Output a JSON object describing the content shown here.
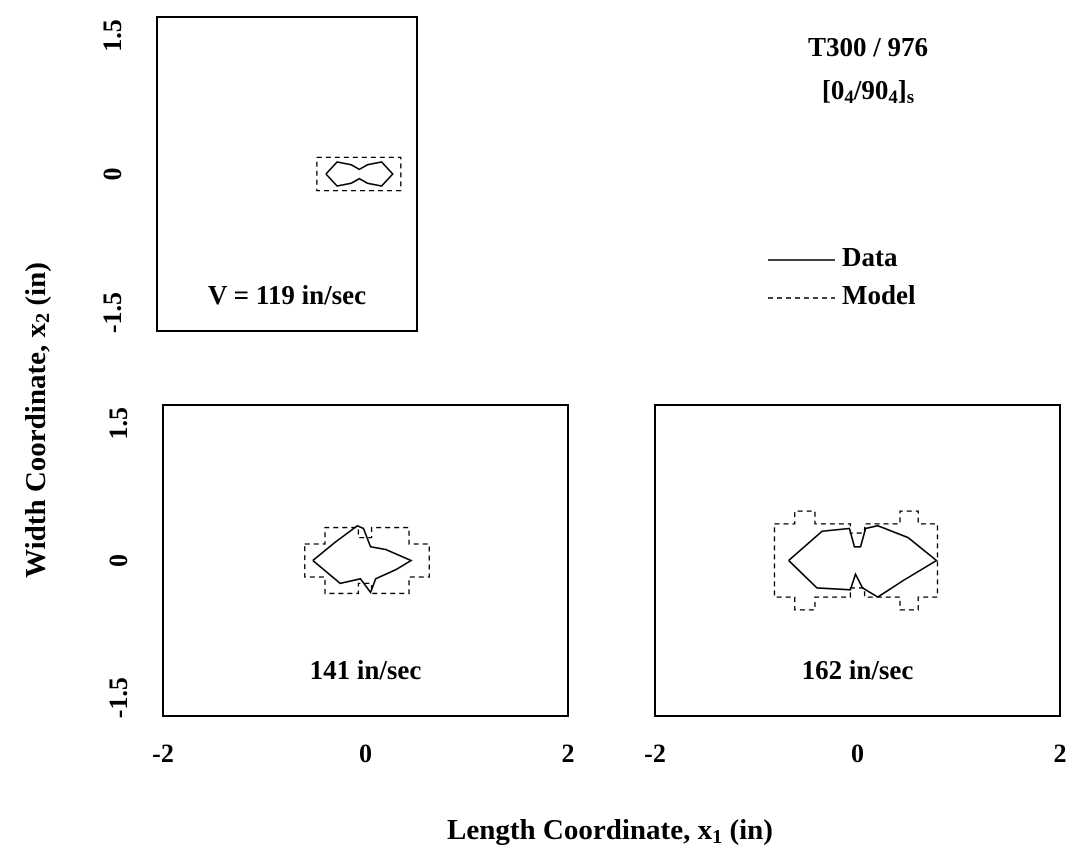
{
  "title": "T300 / 976",
  "subtitle_parts": [
    "[0",
    "4",
    "/90",
    "4",
    "]",
    "s"
  ],
  "xlabel_parts": [
    "Length Coordinate,  x",
    "1",
    "  (in)"
  ],
  "ylabel_parts": [
    "Width Coordinate,  x",
    "2",
    "  (in)"
  ],
  "legend": [
    {
      "name": "Data",
      "style": "solid"
    },
    {
      "name": "Model",
      "style": "dashed"
    }
  ],
  "chart_data": [
    {
      "type": "line",
      "annotation": "V = 119 in/sec",
      "xlim": [
        -2,
        0.57
      ],
      "ylim": [
        -1.7,
        1.7
      ],
      "yticks": [
        -1.5,
        0,
        1.5
      ],
      "xticks": [],
      "series": [
        {
          "style": "solid",
          "x": [
            -0.33,
            -0.22,
            -0.08,
            0,
            0.08,
            0.22,
            0.33,
            0.22,
            0.08,
            0,
            -0.08,
            -0.22,
            -0.33
          ],
          "values": [
            0,
            0.13,
            0.1,
            0.05,
            0.1,
            0.13,
            0,
            -0.13,
            -0.1,
            -0.05,
            -0.1,
            -0.13,
            0
          ]
        },
        {
          "style": "dashed",
          "x": [
            -0.42,
            0.41,
            0.41,
            -0.42,
            -0.42
          ],
          "values": [
            0.18,
            0.18,
            -0.18,
            -0.18,
            0.18
          ]
        }
      ]
    },
    {
      "type": "line",
      "annotation": "141 in/sec",
      "xlim": [
        -2,
        2
      ],
      "ylim": [
        -1.7,
        1.7
      ],
      "yticks": [
        -1.5,
        0,
        1.5
      ],
      "xticks": [
        -2,
        0,
        2
      ],
      "series": [
        {
          "style": "solid",
          "x": [
            -0.52,
            -0.3,
            -0.08,
            -0.02,
            0.05,
            0.2,
            0.45,
            0.3,
            0.1,
            0.05,
            -0.05,
            -0.25,
            -0.52
          ],
          "values": [
            0,
            0.2,
            0.38,
            0.35,
            0.15,
            0.12,
            0,
            -0.1,
            -0.2,
            -0.35,
            -0.2,
            -0.25,
            0
          ]
        },
        {
          "style": "dashed",
          "x": [
            -0.6,
            -0.4,
            -0.4,
            -0.07,
            -0.07,
            0.06,
            0.06,
            0.43,
            0.43,
            0.63,
            0.63,
            0.43,
            0.43,
            0.06,
            0.06,
            -0.07,
            -0.07,
            -0.4,
            -0.4,
            -0.6,
            -0.6
          ],
          "values": [
            0.18,
            0.18,
            0.36,
            0.36,
            0.25,
            0.25,
            0.36,
            0.36,
            0.18,
            0.18,
            -0.18,
            -0.18,
            -0.36,
            -0.36,
            -0.25,
            -0.25,
            -0.36,
            -0.36,
            -0.18,
            -0.18,
            0.18
          ]
        }
      ]
    },
    {
      "type": "line",
      "annotation": "162 in/sec",
      "xlim": [
        -2,
        2
      ],
      "ylim": [
        -1.7,
        1.7
      ],
      "yticks": [],
      "xticks": [
        -2,
        0,
        2
      ],
      "series": [
        {
          "style": "solid",
          "x": [
            -0.68,
            -0.35,
            -0.08,
            -0.03,
            0.03,
            0.08,
            0.2,
            0.5,
            0.78,
            0.45,
            0.2,
            0.05,
            -0.02,
            -0.07,
            -0.4,
            -0.68
          ],
          "values": [
            0,
            0.32,
            0.35,
            0.15,
            0.15,
            0.35,
            0.38,
            0.25,
            0,
            -0.22,
            -0.4,
            -0.3,
            -0.15,
            -0.32,
            -0.3,
            0
          ]
        },
        {
          "style": "dashed",
          "x": [
            -0.82,
            -0.62,
            -0.62,
            -0.42,
            -0.42,
            -0.07,
            -0.07,
            0.07,
            0.07,
            0.42,
            0.42,
            0.6,
            0.6,
            0.79,
            0.79,
            0.6,
            0.6,
            0.42,
            0.42,
            0.07,
            0.07,
            -0.07,
            -0.07,
            -0.42,
            -0.42,
            -0.62,
            -0.62,
            -0.82,
            -0.82
          ],
          "values": [
            0.4,
            0.4,
            0.54,
            0.54,
            0.4,
            0.4,
            0.3,
            0.3,
            0.4,
            0.4,
            0.54,
            0.54,
            0.4,
            0.4,
            -0.4,
            -0.4,
            -0.54,
            -0.54,
            -0.4,
            -0.4,
            -0.3,
            -0.3,
            -0.4,
            -0.4,
            -0.54,
            -0.54,
            -0.4,
            -0.4,
            0.4
          ]
        }
      ]
    }
  ]
}
